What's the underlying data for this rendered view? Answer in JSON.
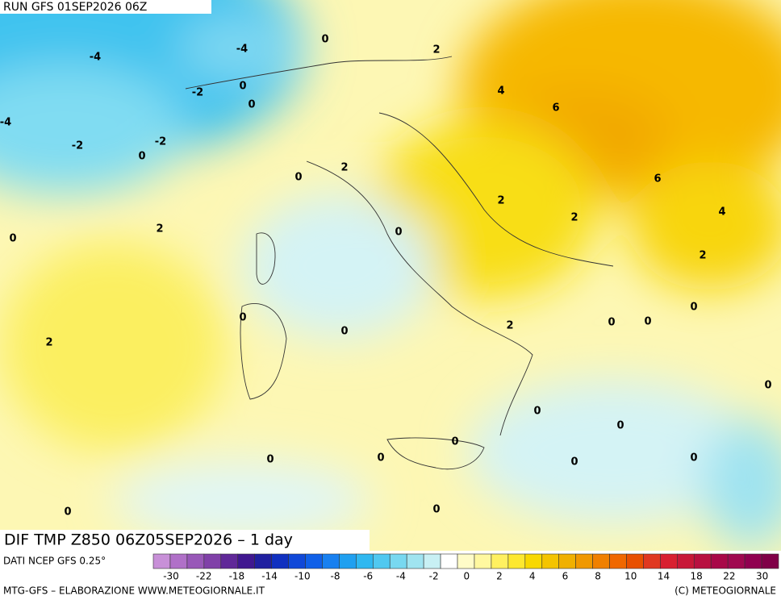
{
  "header": {
    "run": "RUN GFS 01SEP2026 06Z"
  },
  "map": {
    "contour_labels": [
      0,
      2,
      -4,
      -4,
      -2,
      0,
      0,
      4,
      6,
      -4,
      -2,
      -2,
      0,
      2,
      0,
      6,
      2,
      2,
      4,
      2,
      0,
      0,
      2,
      0,
      0,
      0,
      0,
      0,
      2,
      2,
      0,
      0,
      0,
      0,
      0,
      0,
      0,
      0,
      0,
      0
    ]
  },
  "footer": {
    "title": "DIF TMP Z850 06Z05SEP2026 – 1 day",
    "source": "DATI NCEP GFS 0.25°",
    "credits": "MTG-GFS – ELABORAZIONE WWW.METEOGIORNALE.IT",
    "copyright": "(C) METEOGIORNALE",
    "scale_labels": [
      -30,
      -22,
      -18,
      -14,
      -10,
      -8,
      -6,
      -4,
      -2,
      0,
      2,
      4,
      6,
      8,
      10,
      14,
      18,
      22,
      30
    ]
  }
}
